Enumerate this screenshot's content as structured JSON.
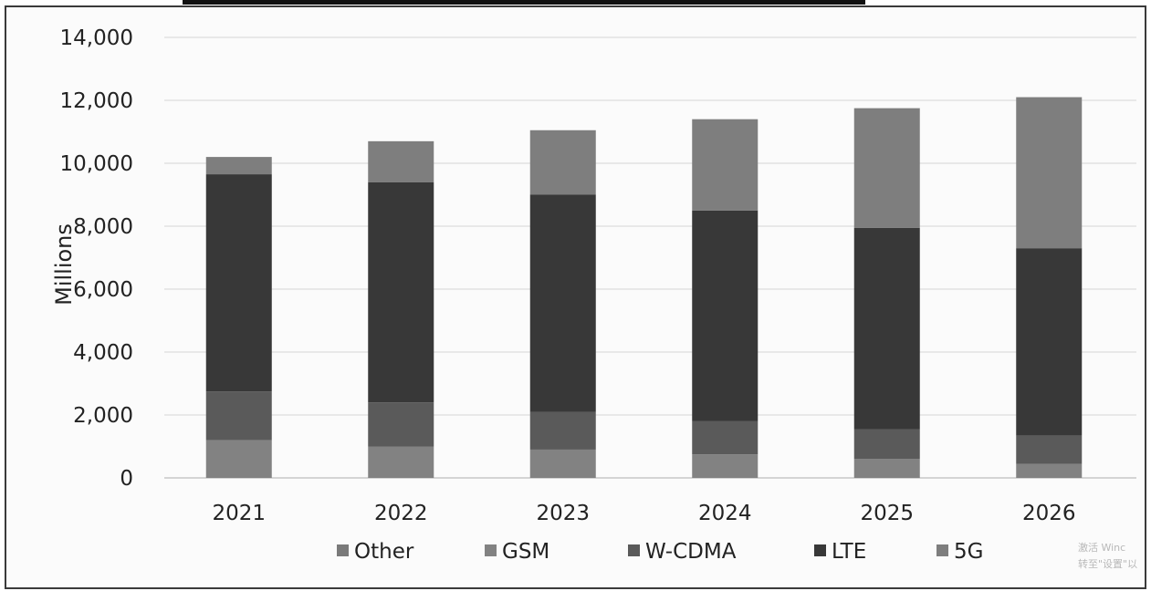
{
  "chart_data": {
    "type": "bar",
    "stacked": true,
    "categories": [
      "2021",
      "2022",
      "2023",
      "2024",
      "2025",
      "2026"
    ],
    "series": [
      {
        "name": "Other",
        "values": [
          0,
          0,
          0,
          0,
          0,
          0
        ]
      },
      {
        "name": "GSM",
        "values": [
          1200,
          1000,
          900,
          750,
          600,
          450
        ]
      },
      {
        "name": "W-CDMA",
        "values": [
          1550,
          1400,
          1200,
          1050,
          950,
          900
        ]
      },
      {
        "name": "LTE",
        "values": [
          6900,
          7000,
          6900,
          6700,
          6400,
          5950
        ]
      },
      {
        "name": "5G",
        "values": [
          550,
          1300,
          2050,
          2900,
          3800,
          4800
        ]
      }
    ],
    "colors": [
      "#7a7a7a",
      "#828282",
      "#5a5a5a",
      "#383838",
      "#7e7e7e"
    ],
    "ylabel": "Millions",
    "ylim": [
      0,
      14000
    ],
    "yticks": [
      "0",
      "2,000",
      "4,000",
      "6,000",
      "8,000",
      "10,000",
      "12,000",
      "14,000"
    ],
    "ytick_values": [
      0,
      2000,
      4000,
      6000,
      8000,
      10000,
      12000,
      14000
    ],
    "grid": true,
    "legend": "bottom"
  },
  "watermark": {
    "line1": "激活 Winc",
    "line2": "转至\"设置\"以"
  }
}
